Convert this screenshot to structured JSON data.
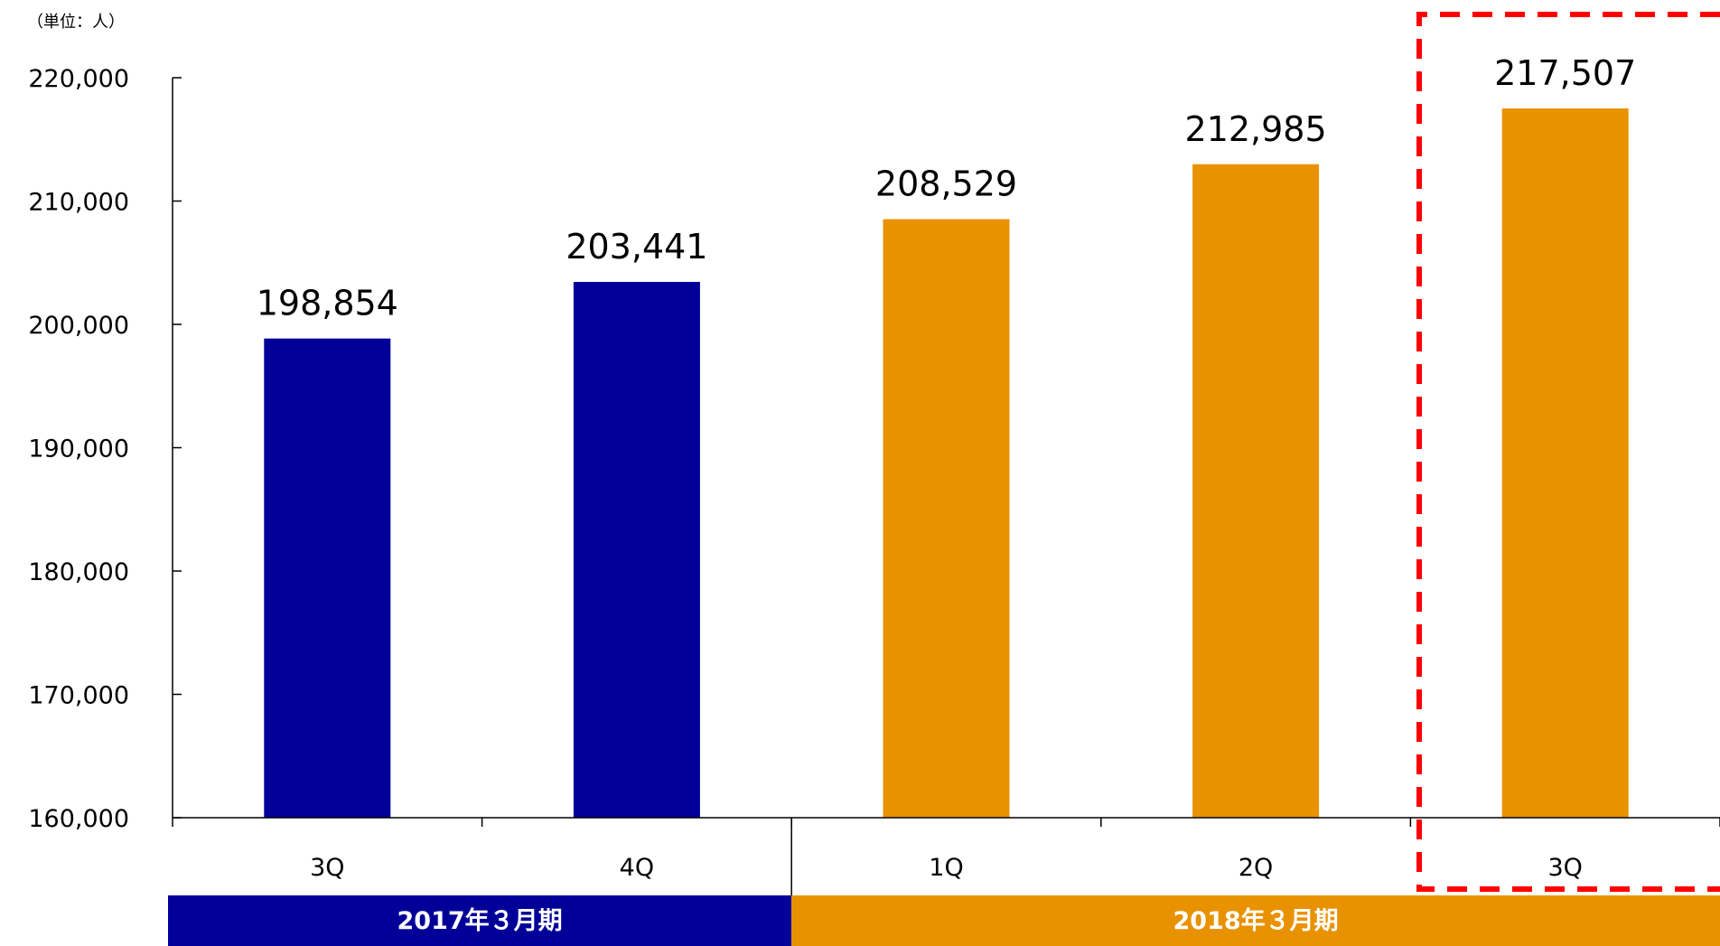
{
  "unit_label": "（単位：人）",
  "colors": {
    "fy2017": "#000099",
    "fy2018": "#E99200",
    "highlight": "#FF0000"
  },
  "chart_data": {
    "type": "bar",
    "title": "",
    "xlabel": "",
    "ylabel": "",
    "ylim": [
      160000,
      220000
    ],
    "yticks": [
      160000,
      170000,
      180000,
      190000,
      200000,
      210000,
      220000
    ],
    "ytick_labels": [
      "160,000",
      "170,000",
      "180,000",
      "190,000",
      "200,000",
      "210,000",
      "220,000"
    ],
    "categories": [
      "3Q",
      "4Q",
      "1Q",
      "2Q",
      "3Q"
    ],
    "values": [
      198854,
      203441,
      208529,
      212985,
      217507
    ],
    "value_labels": [
      "198,854",
      "203,441",
      "208,529",
      "212,985",
      "217,507"
    ],
    "groups": [
      {
        "label": "2017年３月期",
        "indices": [
          0,
          1
        ],
        "color": "#000099"
      },
      {
        "label": "2018年３月期",
        "indices": [
          2,
          3,
          4
        ],
        "color": "#E99200"
      }
    ],
    "highlighted_index": 4,
    "grid": false,
    "legend": "none"
  }
}
